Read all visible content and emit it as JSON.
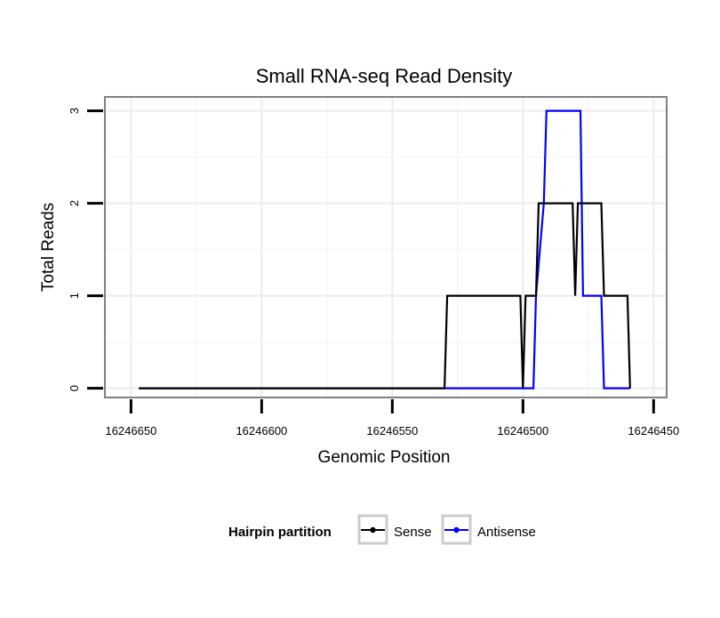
{
  "chart_data": {
    "type": "line",
    "title": "Small RNA-seq Read Density",
    "xlabel": "Genomic Position",
    "ylabel": "Total Reads",
    "x_reversed": true,
    "xlim": [
      16246660,
      16246445
    ],
    "ylim": [
      -0.1,
      3.15
    ],
    "x_ticks": [
      16246650,
      16246600,
      16246550,
      16246500,
      16246450
    ],
    "x_tick_labels": [
      "16246650",
      "16246600",
      "16246550",
      "16246500",
      "16246450"
    ],
    "y_ticks": [
      0,
      1,
      2,
      3
    ],
    "y_tick_labels": [
      "0",
      "1",
      "2",
      "3"
    ],
    "grid": true,
    "legend": {
      "title": "Hairpin partition",
      "position": "bottom"
    },
    "series": [
      {
        "name": "Sense",
        "color": "#000000",
        "x": [
          16246647,
          16246530,
          16246529,
          16246501,
          16246500,
          16246499,
          16246495,
          16246494,
          16246481,
          16246480,
          16246479,
          16246470,
          16246469,
          16246460,
          16246459
        ],
        "y": [
          0,
          0,
          1,
          1,
          0,
          1,
          1,
          2,
          2,
          1,
          2,
          2,
          1,
          1,
          0
        ]
      },
      {
        "name": "Antisense",
        "color": "#0000ff",
        "x": [
          16246647,
          16246496,
          16246495,
          16246492,
          16246491,
          16246478,
          16246477,
          16246470,
          16246469,
          16246460,
          16246459
        ],
        "y": [
          0,
          0,
          1,
          2,
          3,
          3,
          1,
          1,
          0,
          0,
          0
        ]
      }
    ]
  }
}
